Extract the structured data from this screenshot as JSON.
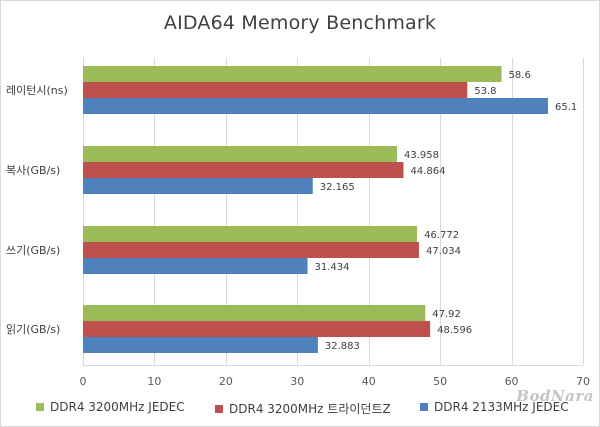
{
  "chart_data": {
    "type": "bar",
    "orientation": "horizontal",
    "title": "AIDA64 Memory Benchmark",
    "xlim": [
      0,
      70
    ],
    "xticks": [
      0,
      10,
      20,
      30,
      40,
      50,
      60,
      70
    ],
    "grid": true,
    "legend_position": "bottom",
    "categories": [
      "레이턴시(ns)",
      "복사(GB/s)",
      "쓰기(GB/s)",
      "읽기(GB/s)"
    ],
    "series": [
      {
        "name": "DDR4 3200MHz JEDEC",
        "color": "#9bbb59",
        "values": [
          58.6,
          43.958,
          46.772,
          47.92
        ],
        "labels": [
          "58.6",
          "43.958",
          "46.772",
          "47.92"
        ]
      },
      {
        "name": "DDR4 3200MHz 트라이던트Z",
        "color": "#c0504d",
        "values": [
          53.8,
          44.864,
          47.034,
          48.596
        ],
        "labels": [
          "53.8",
          "44.864",
          "47.034",
          "48.596"
        ]
      },
      {
        "name": "DDR4 2133MHz JEDEC",
        "color": "#4f81bd",
        "values": [
          65.1,
          32.165,
          31.434,
          32.883
        ],
        "labels": [
          "65.1",
          "32.165",
          "31.434",
          "32.883"
        ]
      }
    ]
  },
  "watermark": {
    "text": "BodNara"
  }
}
